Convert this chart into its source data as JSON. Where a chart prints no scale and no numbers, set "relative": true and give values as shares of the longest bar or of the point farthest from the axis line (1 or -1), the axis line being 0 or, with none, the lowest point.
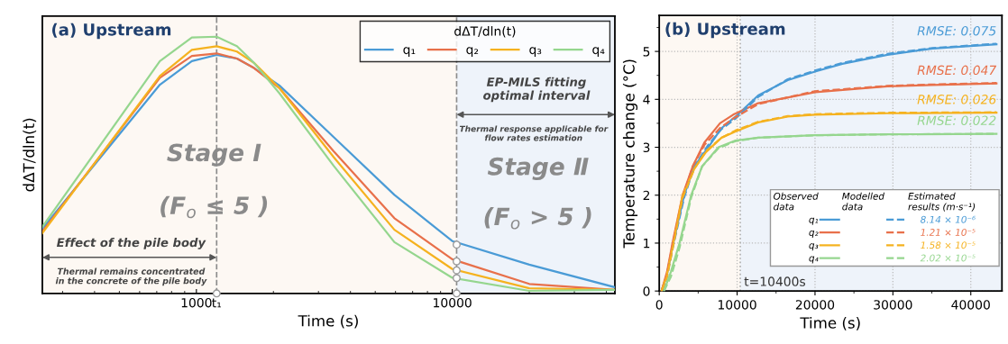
{
  "chart_data": [
    {
      "type": "line",
      "title": "(a) Upstream",
      "xlabel": "Time (s)",
      "ylabel": "dΔT/dln(t)",
      "relative": true,
      "log": "x",
      "xlim": [
        250,
        43200
      ],
      "xticks": [
        1000,
        {
          "value": 1200,
          "label": "t₁"
        },
        10000
      ],
      "legend": "top right",
      "legend_title": "dΔT/dln(t)",
      "series": [
        {
          "name": "q₁",
          "color": "#4a9bd6",
          "x": [
            250,
            720,
            960,
            1200,
            1440,
            1680,
            2110,
            3440,
            5940,
            10000,
            20000,
            43200
          ],
          "values": [
            0.252,
            0.813,
            0.905,
            0.929,
            0.915,
            0.878,
            0.81,
            0.609,
            0.384,
            0.204,
            0.112,
            0.024
          ]
        },
        {
          "name": "q₂",
          "color": "#e8704a",
          "x": [
            250,
            720,
            960,
            1200,
            1440,
            1680,
            2110,
            3440,
            5940,
            10000,
            20000,
            43200
          ],
          "values": [
            0.241,
            0.84,
            0.925,
            0.935,
            0.915,
            0.878,
            0.8,
            0.554,
            0.293,
            0.133,
            0.037,
            0.014
          ]
        },
        {
          "name": "q₃",
          "color": "#f5b21f",
          "x": [
            250,
            720,
            960,
            1200,
            1440,
            1680,
            2110,
            3440,
            5940,
            10000,
            20000,
            43200
          ],
          "values": [
            0.235,
            0.847,
            0.949,
            0.963,
            0.942,
            0.898,
            0.8,
            0.531,
            0.248,
            0.095,
            0.02,
            0.014
          ]
        },
        {
          "name": "q₄",
          "color": "#95d68e",
          "x": [
            250,
            720,
            960,
            1200,
            1440,
            1680,
            2110,
            3440,
            5940,
            10000,
            20000,
            43200
          ],
          "values": [
            0.259,
            0.905,
            0.997,
            1.0,
            0.963,
            0.898,
            0.78,
            0.497,
            0.2,
            0.061,
            0.01,
            0.014
          ]
        },
        {
          "type": "scatter",
          "marker": "circle",
          "color": "#9a9a9a",
          "x": [
            1200,
            10400,
            10400,
            10400,
            10400,
            10400
          ],
          "values": [
            0,
            0.19,
            0.125,
            0.09,
            0.06,
            0
          ]
        }
      ],
      "ref_lines": [
        {
          "axis": "x",
          "value": 1200,
          "color": "#8c8c8c",
          "line_style": "dashed"
        },
        {
          "axis": "x",
          "value": 10400,
          "color": "#8c8c8c",
          "line_style": "dashed"
        }
      ],
      "bands": [
        {
          "axis": "x",
          "from": 250,
          "to": 10400,
          "color": "#fdf8f3"
        },
        {
          "axis": "x",
          "from": 10400,
          "to": 43200,
          "color": "#eef3fa"
        }
      ],
      "annotations": [
        "Stage Ⅰ",
        "(F$_{o}$ ≤ 5 )",
        "Effect of the pile body",
        "Thermal remains concentrated\nin the concrete of the pile body",
        "Stage Ⅱ",
        "(F$_{o}$ > 5 )",
        "EP-MILS fitting\noptimal interval",
        "Thermal response applicable for\nflow rates estimation"
      ]
    },
    {
      "type": "line",
      "title": "(b) Upstream",
      "xlabel": "Time (s)",
      "ylabel": "Temperature change (°C)",
      "xlim": [
        0,
        44000
      ],
      "xticks": [
        0,
        10000,
        20000,
        30000,
        40000
      ],
      "ylim": [
        0,
        5.75
      ],
      "yticks": [
        0,
        1,
        2,
        3,
        4,
        5
      ],
      "grid": true,
      "legend": "bottom right",
      "series": [
        {
          "name": "q₁",
          "color": "#4a9bd6",
          "x": [
            300,
            1000,
            1800,
            3200,
            4500,
            6300,
            8000,
            9800,
            12700,
            16500,
            20000,
            23500,
            29300,
            35100,
            43300
          ],
          "values": [
            0,
            0.35,
            1,
            2,
            2.6,
            3.0,
            3.4,
            3.64,
            4.08,
            4.4,
            4.58,
            4.74,
            4.93,
            5.06,
            5.15
          ]
        },
        {
          "name": "q₂",
          "color": "#e8704a",
          "x": [
            300,
            1000,
            1700,
            3000,
            4300,
            5800,
            7800,
            9500,
            12700,
            20000,
            29300,
            35100,
            43300
          ],
          "values": [
            0,
            0.4,
            1,
            2,
            2.6,
            3.1,
            3.5,
            3.68,
            3.92,
            4.15,
            4.27,
            4.3,
            4.33
          ]
        },
        {
          "name": "q₃",
          "color": "#f5b21f",
          "x": [
            300,
            1000,
            1800,
            3000,
            4500,
            6000,
            8000,
            9800,
            12700,
            16500,
            20000,
            29300,
            43300
          ],
          "values": [
            0,
            0.35,
            1,
            2,
            2.55,
            2.9,
            3.2,
            3.33,
            3.52,
            3.64,
            3.68,
            3.71,
            3.72
          ]
        },
        {
          "name": "q₄",
          "color": "#95d68e",
          "x": [
            600,
            1500,
            2600,
            4100,
            5500,
            7600,
            9800,
            12700,
            20000,
            29300,
            43300
          ],
          "values": [
            0,
            0.4,
            1,
            2,
            2.6,
            3.0,
            3.14,
            3.2,
            3.25,
            3.27,
            3.28
          ]
        },
        {
          "color": "#4a9bd6",
          "line_style": "dashed",
          "x": [
            300,
            1000,
            1800,
            3200,
            4500,
            6300,
            8000,
            9800,
            12700,
            16500,
            20000,
            23500,
            29300,
            35100,
            43300
          ],
          "values": [
            0,
            0.3,
            0.95,
            1.95,
            2.6,
            3.05,
            3.38,
            3.6,
            4.05,
            4.42,
            4.6,
            4.76,
            4.95,
            5.07,
            5.16
          ]
        },
        {
          "color": "#e8704a",
          "line_style": "dashed",
          "x": [
            300,
            1000,
            1700,
            3000,
            4300,
            5800,
            7800,
            9500,
            12700,
            20000,
            29300,
            35100,
            43300
          ],
          "values": [
            0,
            0.35,
            0.95,
            1.95,
            2.6,
            3.05,
            3.4,
            3.6,
            3.9,
            4.17,
            4.28,
            4.31,
            4.34
          ]
        },
        {
          "color": "#f5b21f",
          "line_style": "dashed",
          "x": [
            300,
            1000,
            1800,
            3000,
            4500,
            6000,
            8000,
            9800,
            12700,
            16500,
            20000,
            29300,
            43300
          ],
          "values": [
            0,
            0.3,
            0.95,
            1.95,
            2.55,
            2.92,
            3.2,
            3.35,
            3.53,
            3.65,
            3.69,
            3.72,
            3.73
          ]
        },
        {
          "color": "#95d68e",
          "line_style": "dashed",
          "x": [
            600,
            1500,
            2600,
            4100,
            5500,
            7600,
            9800,
            12700,
            20000,
            29300,
            43300
          ],
          "values": [
            0,
            0.3,
            0.9,
            1.95,
            2.6,
            2.98,
            3.13,
            3.2,
            3.25,
            3.27,
            3.28
          ]
        }
      ],
      "ref_lines": [
        {
          "axis": "x",
          "value": 10400,
          "label": "t=10400s",
          "color": "#b0b0b0",
          "line_style": "dotted"
        }
      ],
      "bands": [
        {
          "axis": "x",
          "from": 0,
          "to": 10400,
          "color": "#fdf8f3"
        },
        {
          "axis": "x",
          "from": 10400,
          "to": 44000,
          "color": "#eef3fa"
        }
      ],
      "annotations": [
        "Observed\ndata",
        "Modelled\ndata",
        "Estimated\nresults (m·s⁻¹)",
        "8.14 × 10⁻⁶",
        "1.21 × 10⁻⁵",
        "1.58 × 10⁻⁵",
        "2.02 × 10⁻⁵",
        "RMSE: 0.075",
        "RMSE: 0.047",
        "RMSE: 0.026",
        "RMSE: 0.022"
      ]
    }
  ]
}
